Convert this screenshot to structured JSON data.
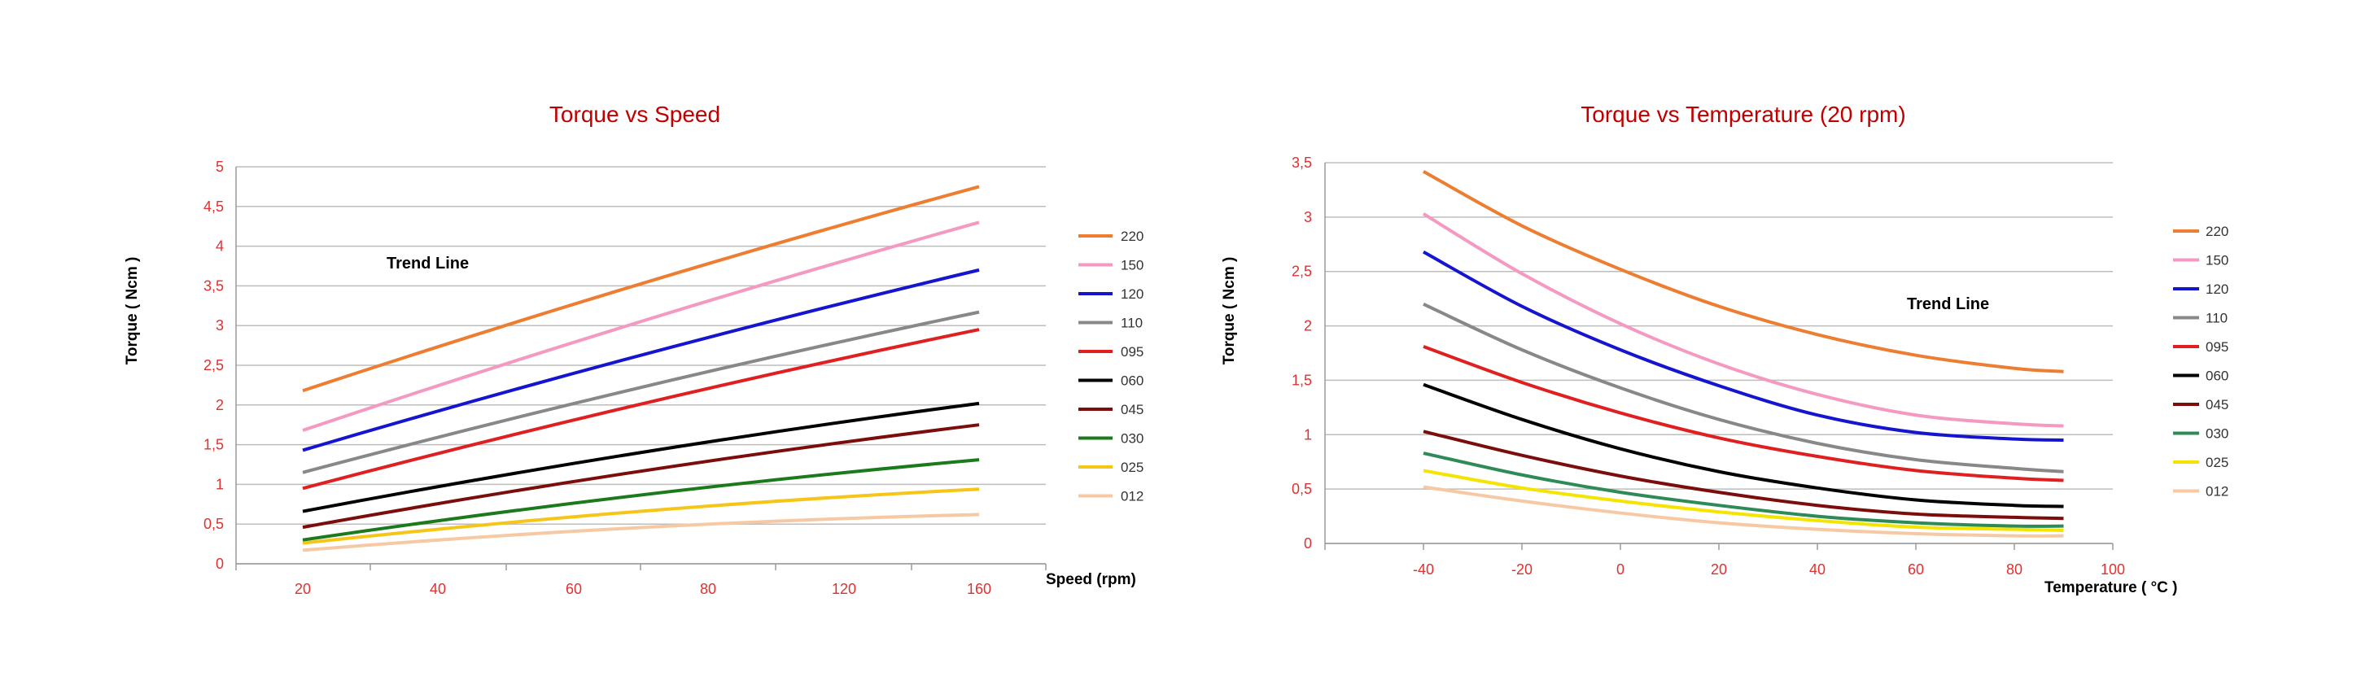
{
  "chart_data": [
    {
      "type": "line",
      "title": "Torque vs Speed",
      "xlabel": "Speed (rpm)",
      "ylabel": "Torque ( Ncm )",
      "annotation": "Trend Line",
      "x": [
        20,
        160
      ],
      "xticks": [
        "20",
        "40",
        "60",
        "80",
        "120",
        "160"
      ],
      "yticks": [
        "0",
        "0,5",
        "1",
        "1,5",
        "2",
        "2,5",
        "3",
        "3,5",
        "4",
        "4,5",
        "5"
      ],
      "ylim": [
        0,
        5
      ],
      "grid": true,
      "legend_position": "right",
      "series": [
        {
          "name": "220",
          "color": "#ed7d31",
          "values": [
            2.18,
            4.75
          ]
        },
        {
          "name": "150",
          "color": "#f49ac2",
          "values": [
            1.68,
            4.3
          ]
        },
        {
          "name": "120",
          "color": "#1515d0",
          "values": [
            1.43,
            3.7
          ]
        },
        {
          "name": "110",
          "color": "#888888",
          "values": [
            1.15,
            3.17
          ]
        },
        {
          "name": "095",
          "color": "#e02020",
          "values": [
            0.95,
            2.95
          ]
        },
        {
          "name": "060",
          "color": "#000000",
          "values": [
            0.66,
            2.02
          ]
        },
        {
          "name": "045",
          "color": "#7b0d0d",
          "values": [
            0.46,
            1.75
          ]
        },
        {
          "name": "030",
          "color": "#1b7a1b",
          "values": [
            0.3,
            1.31
          ]
        },
        {
          "name": "025",
          "color": "#f5c518",
          "values": [
            0.26,
            0.94
          ]
        },
        {
          "name": "012",
          "color": "#f6c9a4",
          "values": [
            0.17,
            0.62
          ]
        }
      ]
    },
    {
      "type": "line",
      "title": "Torque vs Temperature (20 rpm)",
      "xlabel": "Temperature  ( °C )",
      "ylabel": "Torque ( Ncm )",
      "annotation": "Trend Line",
      "x": [
        -40,
        -20,
        0,
        20,
        40,
        60,
        80,
        90
      ],
      "xticks": [
        "-40",
        "-20",
        "0",
        "20",
        "40",
        "60",
        "80",
        "100"
      ],
      "yticks": [
        "0",
        "0,5",
        "1",
        "1,5",
        "2",
        "2,5",
        "3",
        "3,5"
      ],
      "xlim": [
        -60,
        100
      ],
      "ylim": [
        0,
        3.5
      ],
      "grid": true,
      "legend_position": "right",
      "series": [
        {
          "name": "220",
          "color": "#ed7d31",
          "values": [
            3.42,
            2.92,
            2.52,
            2.18,
            1.92,
            1.73,
            1.61,
            1.58
          ]
        },
        {
          "name": "150",
          "color": "#f49ac2",
          "values": [
            3.03,
            2.48,
            2.02,
            1.65,
            1.37,
            1.18,
            1.1,
            1.08
          ]
        },
        {
          "name": "120",
          "color": "#1515d0",
          "values": [
            2.68,
            2.18,
            1.78,
            1.45,
            1.18,
            1.02,
            0.96,
            0.95
          ]
        },
        {
          "name": "110",
          "color": "#888888",
          "values": [
            2.2,
            1.78,
            1.43,
            1.14,
            0.92,
            0.77,
            0.69,
            0.66
          ]
        },
        {
          "name": "095",
          "color": "#e02020",
          "values": [
            1.81,
            1.48,
            1.2,
            0.97,
            0.8,
            0.67,
            0.6,
            0.58
          ]
        },
        {
          "name": "060",
          "color": "#000000",
          "values": [
            1.46,
            1.14,
            0.87,
            0.66,
            0.51,
            0.4,
            0.35,
            0.34
          ]
        },
        {
          "name": "045",
          "color": "#7b0d0d",
          "values": [
            1.03,
            0.81,
            0.62,
            0.47,
            0.35,
            0.27,
            0.24,
            0.23
          ]
        },
        {
          "name": "030",
          "color": "#2e8b57",
          "values": [
            0.83,
            0.63,
            0.47,
            0.35,
            0.25,
            0.19,
            0.16,
            0.16
          ]
        },
        {
          "name": "025",
          "color": "#f5e400",
          "values": [
            0.67,
            0.51,
            0.39,
            0.29,
            0.21,
            0.15,
            0.13,
            0.12
          ]
        },
        {
          "name": "012",
          "color": "#f6c9a4",
          "values": [
            0.52,
            0.39,
            0.28,
            0.19,
            0.13,
            0.09,
            0.07,
            0.07
          ]
        }
      ]
    }
  ]
}
